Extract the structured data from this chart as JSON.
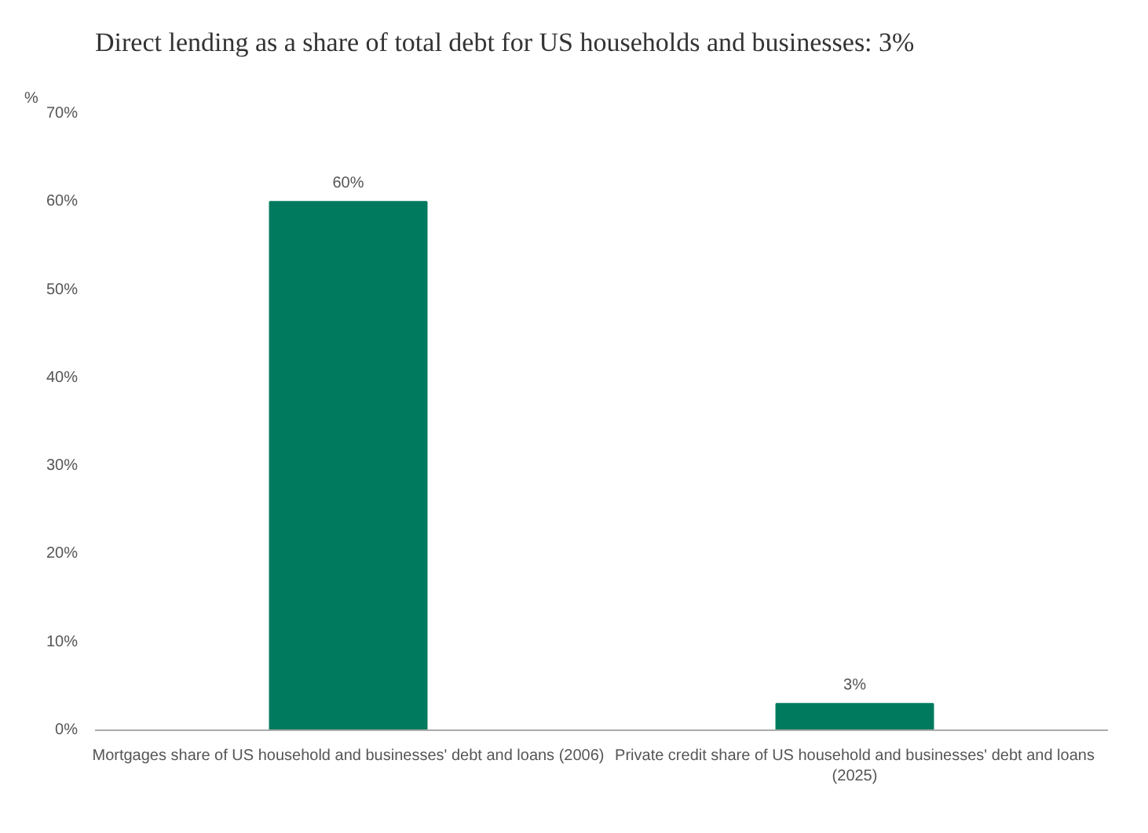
{
  "chart_data": {
    "type": "bar",
    "title": "Direct lending as a share of total debt for US households and businesses: 3%",
    "ylabel": "%",
    "categories": [
      "Mortgages share of US household and businesses' debt and loans (2006)",
      "Private credit share of US household and businesses' debt and loans (2025)"
    ],
    "values": [
      60,
      3
    ],
    "value_labels": [
      "60%",
      "3%"
    ],
    "color": "#007a5e",
    "ylim": [
      0,
      70
    ],
    "yticks": [
      {
        "value": 0,
        "label": "0%"
      },
      {
        "value": 10,
        "label": "10%"
      },
      {
        "value": 20,
        "label": "20%"
      },
      {
        "value": 30,
        "label": "30%"
      },
      {
        "value": 40,
        "label": "40%"
      },
      {
        "value": 50,
        "label": "50%"
      },
      {
        "value": 60,
        "label": "60%"
      },
      {
        "value": 70,
        "label": "70%"
      }
    ],
    "grid": false
  }
}
